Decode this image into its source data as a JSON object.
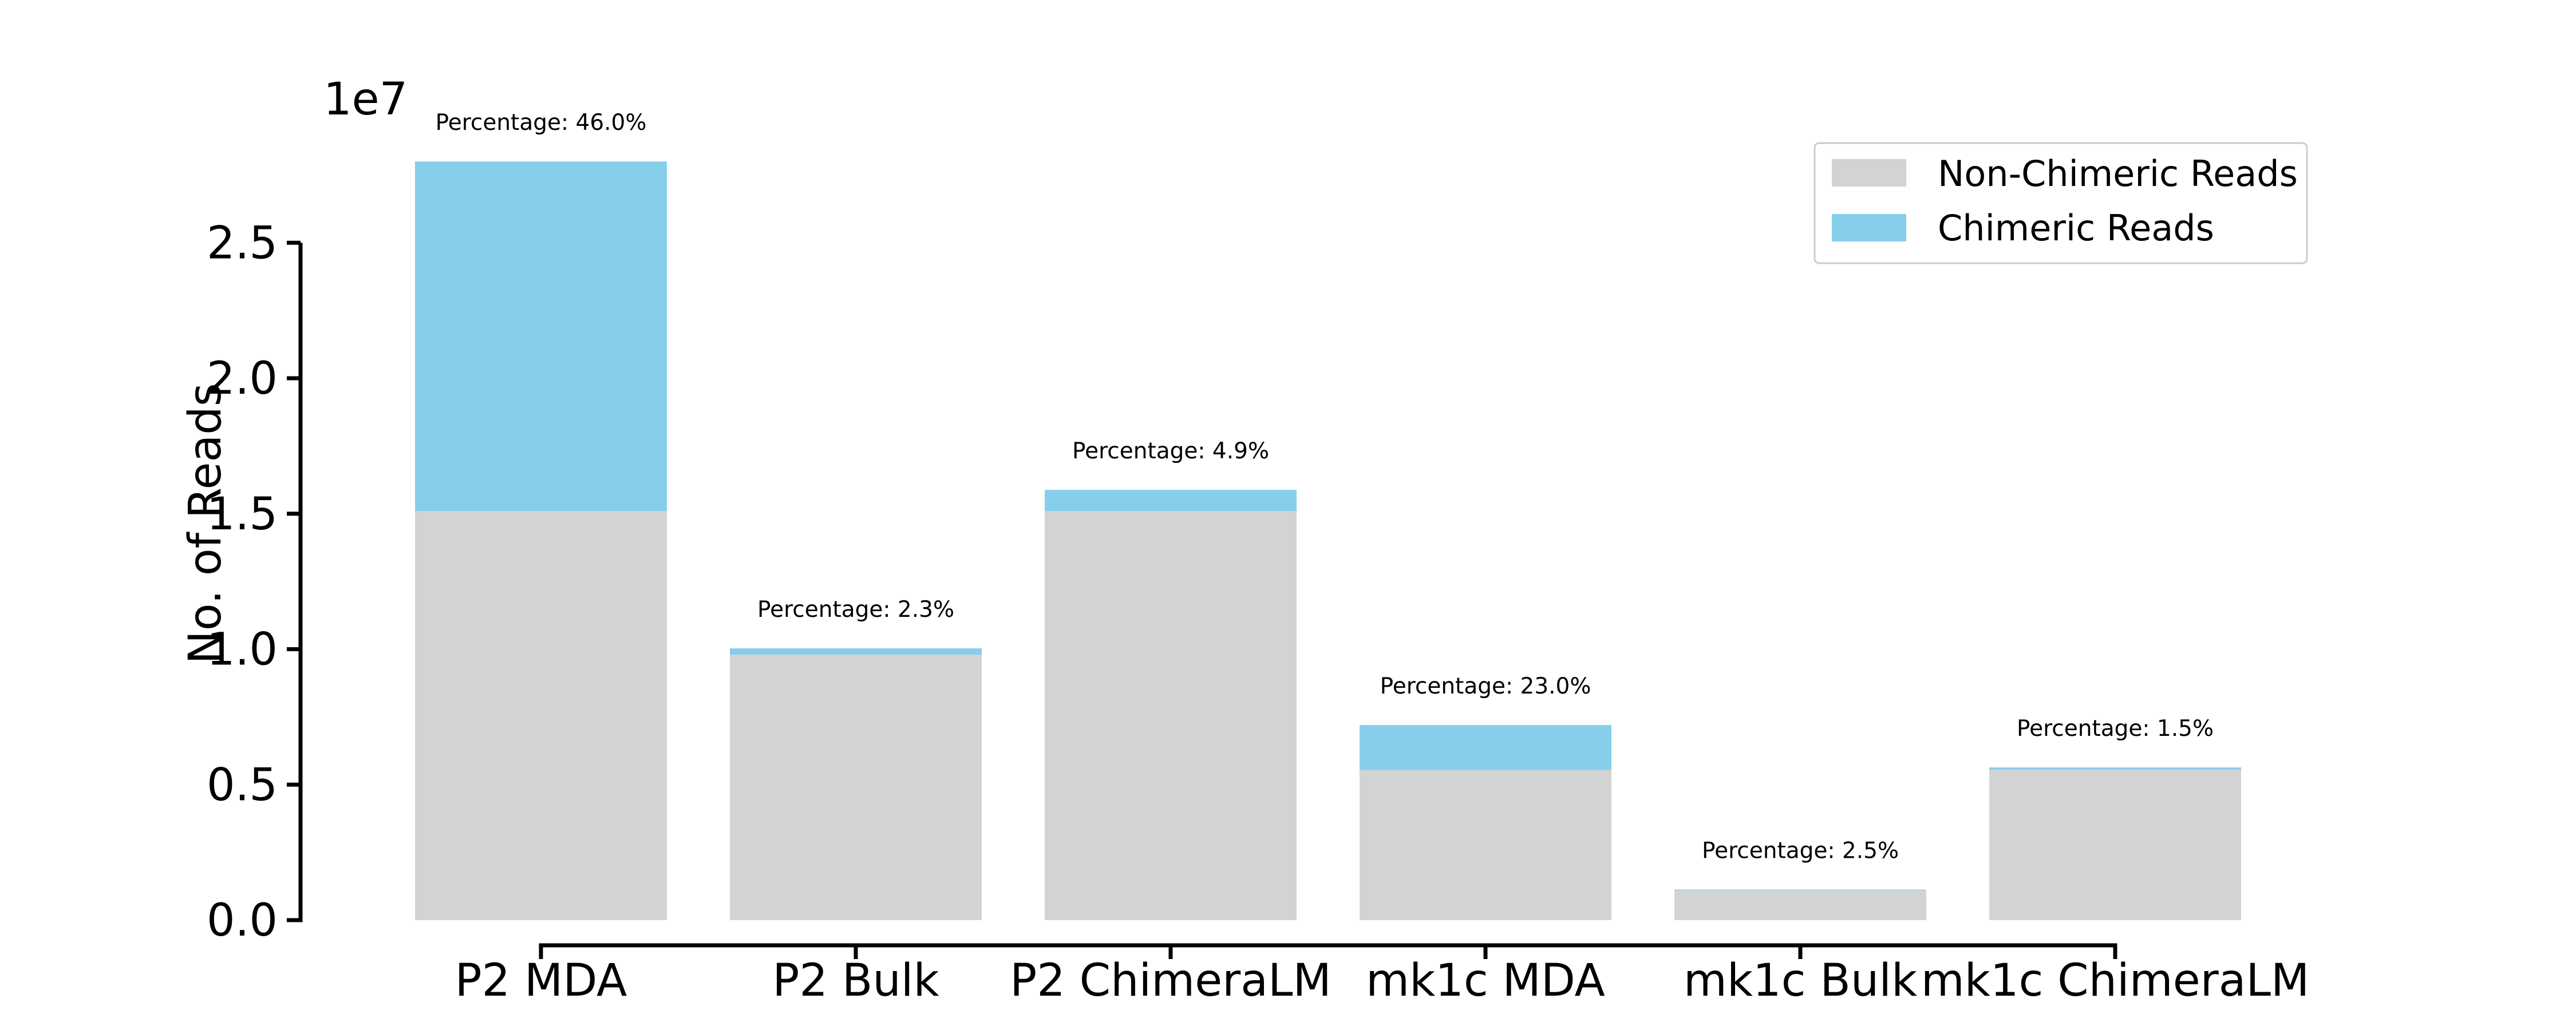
{
  "chart_data": {
    "type": "bar",
    "stacked": true,
    "categories": [
      "P2 MDA",
      "P2 Bulk",
      "P2 ChimeraLM",
      "mk1c MDA",
      "mk1c Bulk",
      "mk1c ChimeraLM"
    ],
    "series": [
      {
        "name": "Non-Chimeric Reads",
        "color": "#d3d3d3",
        "values": [
          15100000,
          9800000,
          15100000,
          5540000,
          1100000,
          5550000
        ]
      },
      {
        "name": "Chimeric Reads",
        "color": "#87ceeb",
        "values": [
          12900000,
          230000,
          780000,
          1660000,
          28000,
          85000
        ]
      }
    ],
    "annotations": [
      "Percentage: 46.0%",
      "Percentage: 2.3%",
      "Percentage: 4.9%",
      "Percentage: 23.0%",
      "Percentage: 2.5%",
      "Percentage: 1.5%"
    ],
    "ylabel": "No. of Reads",
    "xlabel": "",
    "y_offset_label": "1e7",
    "y_ticks": [
      0,
      0.5,
      1.0,
      1.5,
      2.0,
      2.5
    ],
    "y_tick_labels": [
      "0.0",
      "0.5",
      "1.0",
      "1.5",
      "2.0",
      "2.5"
    ],
    "ylim": [
      0,
      28000000
    ],
    "grid": false,
    "legend_position": "top-right"
  }
}
